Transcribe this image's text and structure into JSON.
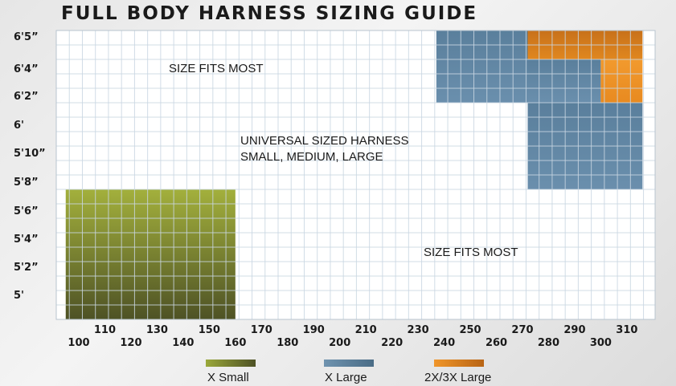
{
  "title": "FULL BODY HARNESS SIZING GUIDE",
  "chart_data": {
    "type": "heatmap",
    "title": "FULL BODY HARNESS SIZING GUIDE",
    "x_unit_hint": "",
    "x_ticks": [
      100,
      110,
      120,
      130,
      140,
      150,
      160,
      170,
      180,
      190,
      200,
      210,
      220,
      230,
      240,
      250,
      260,
      270,
      280,
      290,
      300,
      310
    ],
    "y_labels": [
      "6'5”",
      "6'4”",
      "6'2”",
      "6'",
      "5'10”",
      "5'8”",
      "5'6”",
      "5'4”",
      "5'2”",
      "5'"
    ],
    "grid": true,
    "regions": [
      {
        "name": "X Small",
        "weight_range": [
          95,
          160
        ],
        "height_range": [
          "5'",
          "5'6”"
        ],
        "color": "#9aa83a"
      },
      {
        "name": "X Large",
        "weight_range": [
          237,
          272
        ],
        "height_range": [
          "6'2”",
          "6'5”"
        ],
        "color": "#5f85a3"
      },
      {
        "name": "X Large",
        "weight_range": [
          272,
          300
        ],
        "height_range": [
          "6'2”",
          "6'4”"
        ],
        "color": "#5f85a3"
      },
      {
        "name": "X Large",
        "weight_range": [
          272,
          316
        ],
        "height_range": [
          "5'8”",
          "6'2”"
        ],
        "color": "#5f85a3"
      },
      {
        "name": "2X/3X Large",
        "weight_range": [
          272,
          316
        ],
        "height_range": [
          "6'4”",
          "6'5”"
        ],
        "color": "#d57a1a"
      },
      {
        "name": "2X/3X Large",
        "weight_range": [
          300,
          316
        ],
        "height_range": [
          "6'2”",
          "6'4”"
        ],
        "color": "#f0962a"
      }
    ],
    "annotations": [
      "SIZE FITS MOST",
      "UNIVERSAL SIZED HARNESS",
      "SMALL, MEDIUM, LARGE",
      "SIZE FITS MOST"
    ]
  },
  "legend": [
    {
      "label": "X Small",
      "color_start": "#9aa83a",
      "color_end": "#4e5225"
    },
    {
      "label": "X Large",
      "color_start": "#6f93af",
      "color_end": "#4a6c86"
    },
    {
      "label": "2X/3X Large",
      "color_start": "#f0962a",
      "color_end": "#b86414"
    }
  ]
}
